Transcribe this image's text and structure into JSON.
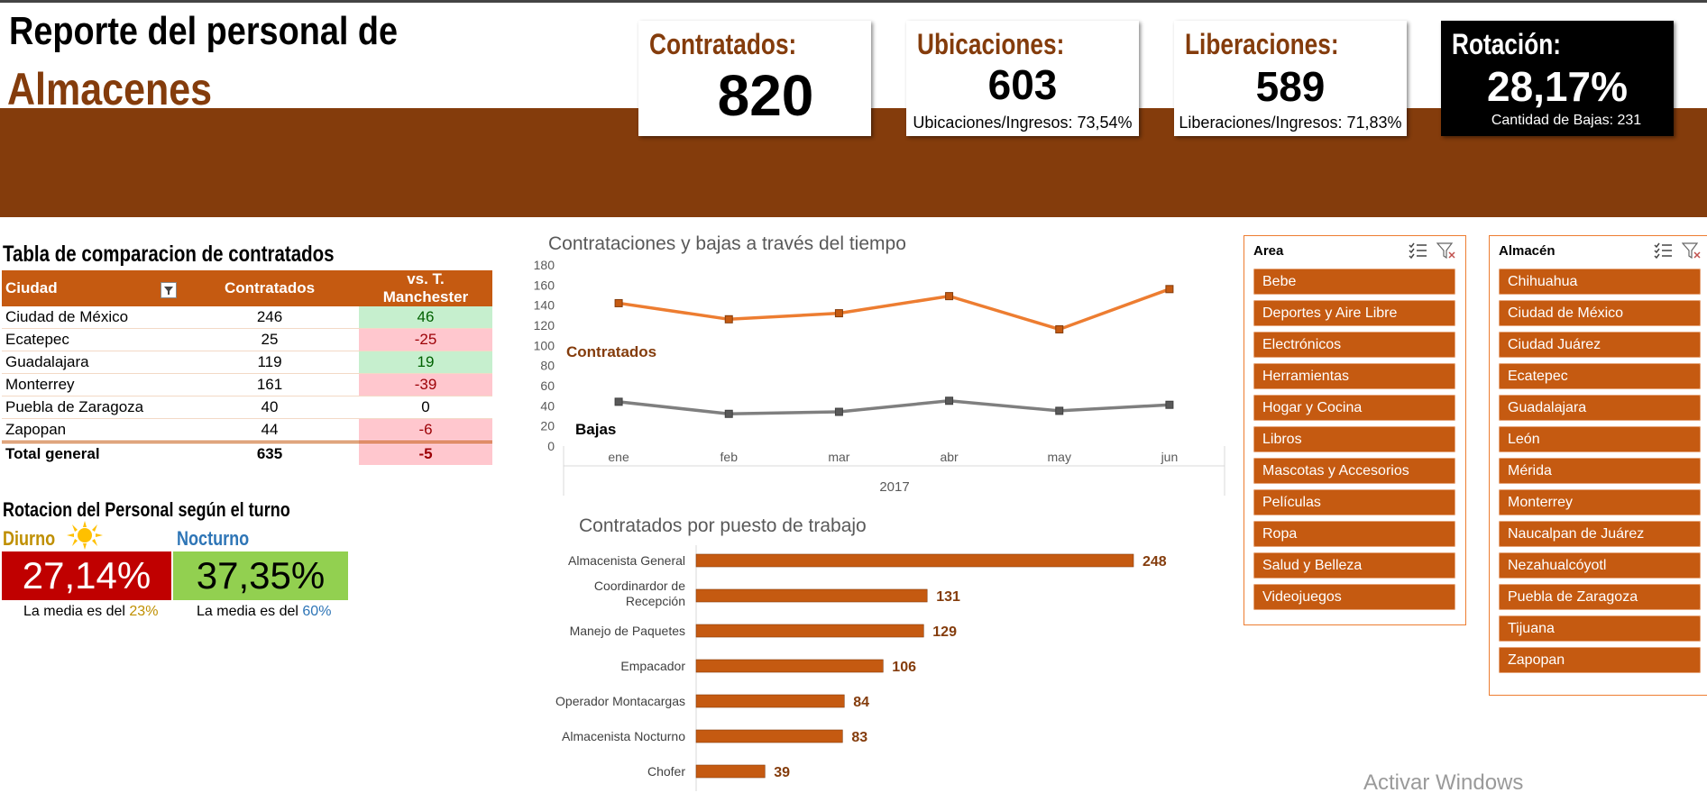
{
  "header": {
    "title_line1": "Reporte del personal de",
    "title_line2": "Almacenes"
  },
  "kpis": {
    "contratados": {
      "label": "Contratados:",
      "value": "820"
    },
    "ubicaciones": {
      "label": "Ubicaciones:",
      "value": "603",
      "sub": "Ubicaciones/Ingresos: 73,54%"
    },
    "liberaciones": {
      "label": "Liberaciones:",
      "value": "589",
      "sub": "Liberaciones/Ingresos: 71,83%"
    },
    "rotacion": {
      "label": "Rotación:",
      "value": "28,17%",
      "sub": "Cantidad de Bajas: 231"
    }
  },
  "comparison_table": {
    "title": "Tabla de comparacion de contratados",
    "columns": [
      "Ciudad",
      "Contratados",
      "vs. T. Manchester"
    ],
    "rows": [
      {
        "city": "Ciudad de México",
        "hired": "246",
        "vs": "46",
        "status": "pos"
      },
      {
        "city": "Ecatepec",
        "hired": "25",
        "vs": "-25",
        "status": "neg"
      },
      {
        "city": "Guadalajara",
        "hired": "119",
        "vs": "19",
        "status": "pos"
      },
      {
        "city": "Monterrey",
        "hired": "161",
        "vs": "-39",
        "status": "neg"
      },
      {
        "city": "Puebla de Zaragoza",
        "hired": "40",
        "vs": "0",
        "status": "zero"
      },
      {
        "city": "Zapopan",
        "hired": "44",
        "vs": "-6",
        "status": "neg"
      }
    ],
    "total": {
      "city": "Total general",
      "hired": "635",
      "vs": "-5",
      "status": "neg"
    }
  },
  "rotation_by_shift": {
    "title": "Rotacion del Personal según el turno",
    "day": {
      "label": "Diurno",
      "value": "27,14%",
      "note_prefix": "La media es del ",
      "note_value": "23%",
      "color": "#C00000",
      "note_color": "#BF8F00"
    },
    "night": {
      "label": "Nocturno",
      "value": "37,35%",
      "note_prefix": "La media es del ",
      "note_value": "60%",
      "color": "#92D050",
      "note_color": "#2E75B6"
    }
  },
  "line_chart": {
    "title": "Contrataciones y bajas a través del tiempo",
    "year": "2017",
    "label_contratados": "Contratados",
    "label_bajas": "Bajas"
  },
  "bar_chart": {
    "title": "Contratados por puesto de trabajo"
  },
  "chart_data": [
    {
      "type": "line",
      "title": "Contrataciones y bajas a través del tiempo",
      "categories": [
        "ene",
        "feb",
        "mar",
        "abr",
        "may",
        "jun"
      ],
      "xlabel": "2017",
      "ylim": [
        0,
        180
      ],
      "yticks": [
        0,
        20,
        40,
        60,
        80,
        100,
        120,
        140,
        160,
        180
      ],
      "series": [
        {
          "name": "Contratados",
          "values": [
            142,
            126,
            132,
            149,
            116,
            156
          ],
          "color": "#ED7D31"
        },
        {
          "name": "Bajas",
          "values": [
            44,
            32,
            34,
            45,
            35,
            41
          ],
          "color": "#7F7F7F"
        }
      ]
    },
    {
      "type": "bar",
      "orientation": "horizontal",
      "title": "Contratados por puesto de trabajo",
      "categories": [
        "Almacenista General",
        "Coordinardor de Recepción",
        "Manejo de Paquetes",
        "Empacador",
        "Operador Montacargas",
        "Almacenista Nocturno",
        "Chofer"
      ],
      "values": [
        248,
        131,
        129,
        106,
        84,
        83,
        39
      ],
      "color": "#C55A11"
    }
  ],
  "slicers": {
    "area": {
      "title": "Area",
      "items": [
        "Bebe",
        "Deportes y Aire Libre",
        "Electrónicos",
        "Herramientas",
        "Hogar y Cocina",
        "Libros",
        "Mascotas y Accesorios",
        "Películas",
        "Ropa",
        "Salud y Belleza",
        "Videojuegos"
      ]
    },
    "almacen": {
      "title": "Almacén",
      "items": [
        "Chihuahua",
        "Ciudad de México",
        "Ciudad Juárez",
        "Ecatepec",
        "Guadalajara",
        "León",
        "Mérida",
        "Monterrey",
        "Naucalpan de Juárez",
        "Nezahualcóyotl",
        "Puebla de Zaragoza",
        "Tijuana",
        "Zapopan"
      ]
    }
  },
  "watermark": "Activar Windows"
}
